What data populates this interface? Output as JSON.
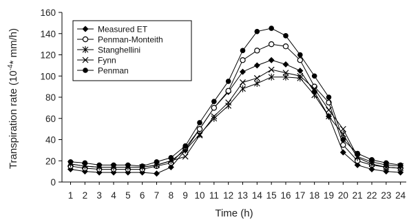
{
  "chart_data": {
    "type": "line",
    "title": "",
    "xlabel": "Time (h)",
    "ylabel_prefix": "Transpiration rate (10",
    "ylabel_exp": "-4",
    "ylabel_suffix": "* mm/h)",
    "ylim": [
      0,
      160
    ],
    "yticks": [
      "0",
      "20",
      "40",
      "60",
      "80",
      "100",
      "120",
      "140",
      "160"
    ],
    "xticks": [
      "1",
      "2",
      "3",
      "4",
      "5",
      "6",
      "7",
      "8",
      "9",
      "10",
      "11",
      "12",
      "13",
      "14",
      "15",
      "16",
      "17",
      "18",
      "19",
      "20",
      "21",
      "22",
      "23",
      "24"
    ],
    "x": [
      1,
      2,
      3,
      4,
      5,
      6,
      7,
      8,
      9,
      10,
      11,
      12,
      13,
      14,
      15,
      16,
      17,
      18,
      19,
      20,
      21,
      22,
      23,
      24
    ],
    "grid": false,
    "legend_position": "top-left",
    "series": [
      {
        "name": "Measured ET",
        "marker": "diamond",
        "values": [
          12,
          10,
          9,
          9,
          9,
          9,
          8,
          14,
          30,
          50,
          70,
          85,
          104,
          110,
          115,
          111,
          105,
          85,
          62,
          28,
          16,
          12,
          10,
          9
        ]
      },
      {
        "name": "Penman-Monteith",
        "marker": "circle-open",
        "values": [
          15,
          13,
          12,
          12,
          12,
          12,
          15,
          18,
          32,
          50,
          70,
          86,
          115,
          124,
          130,
          128,
          115,
          90,
          75,
          35,
          20,
          16,
          14,
          13
        ]
      },
      {
        "name": "Stanghellini",
        "marker": "asterisk",
        "values": [
          17,
          15,
          14,
          14,
          14,
          14,
          16,
          20,
          30,
          45,
          60,
          72,
          88,
          93,
          99,
          99,
          98,
          82,
          62,
          45,
          23,
          17,
          14,
          13
        ]
      },
      {
        "name": "Fynn",
        "marker": "x",
        "values": [
          17,
          15,
          14,
          14,
          14,
          14,
          16,
          20,
          24,
          44,
          62,
          75,
          94,
          98,
          106,
          103,
          100,
          88,
          68,
          50,
          24,
          19,
          16,
          15
        ]
      },
      {
        "name": "Penman",
        "marker": "circle-filled",
        "values": [
          19,
          18,
          16,
          16,
          16,
          15,
          19,
          23,
          34,
          56,
          76,
          95,
          124,
          142,
          145,
          138,
          120,
          100,
          80,
          40,
          27,
          21,
          18,
          16
        ]
      }
    ]
  }
}
